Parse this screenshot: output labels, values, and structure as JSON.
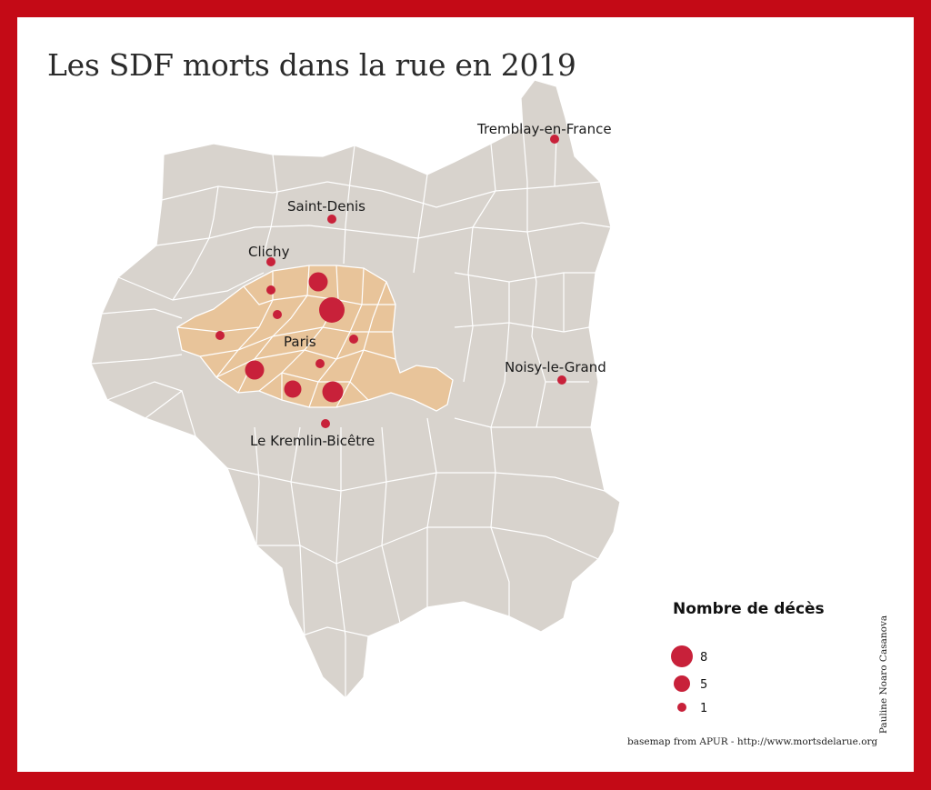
{
  "title": "Les SDF morts dans la rue en 2019",
  "colors": {
    "frame": "#c40a16",
    "land": "#d8d3cd",
    "paris": "#e8c49a",
    "boundary": "#ffffff",
    "marker": "#c8213a"
  },
  "places": {
    "tremblay": "Tremblay-en-France",
    "saint_denis": "Saint-Denis",
    "clichy": "Clichy",
    "paris": "Paris",
    "noisy": "Noisy-le-Grand",
    "kremlin": "Le Kremlin-Bicêtre"
  },
  "legend": {
    "title": "Nombre de décès",
    "values": [
      "8",
      "5",
      "1"
    ]
  },
  "credit": "basemap from APUR - http://www.mortsdelarue.org",
  "author": "Pauline Noaro Casanova"
}
